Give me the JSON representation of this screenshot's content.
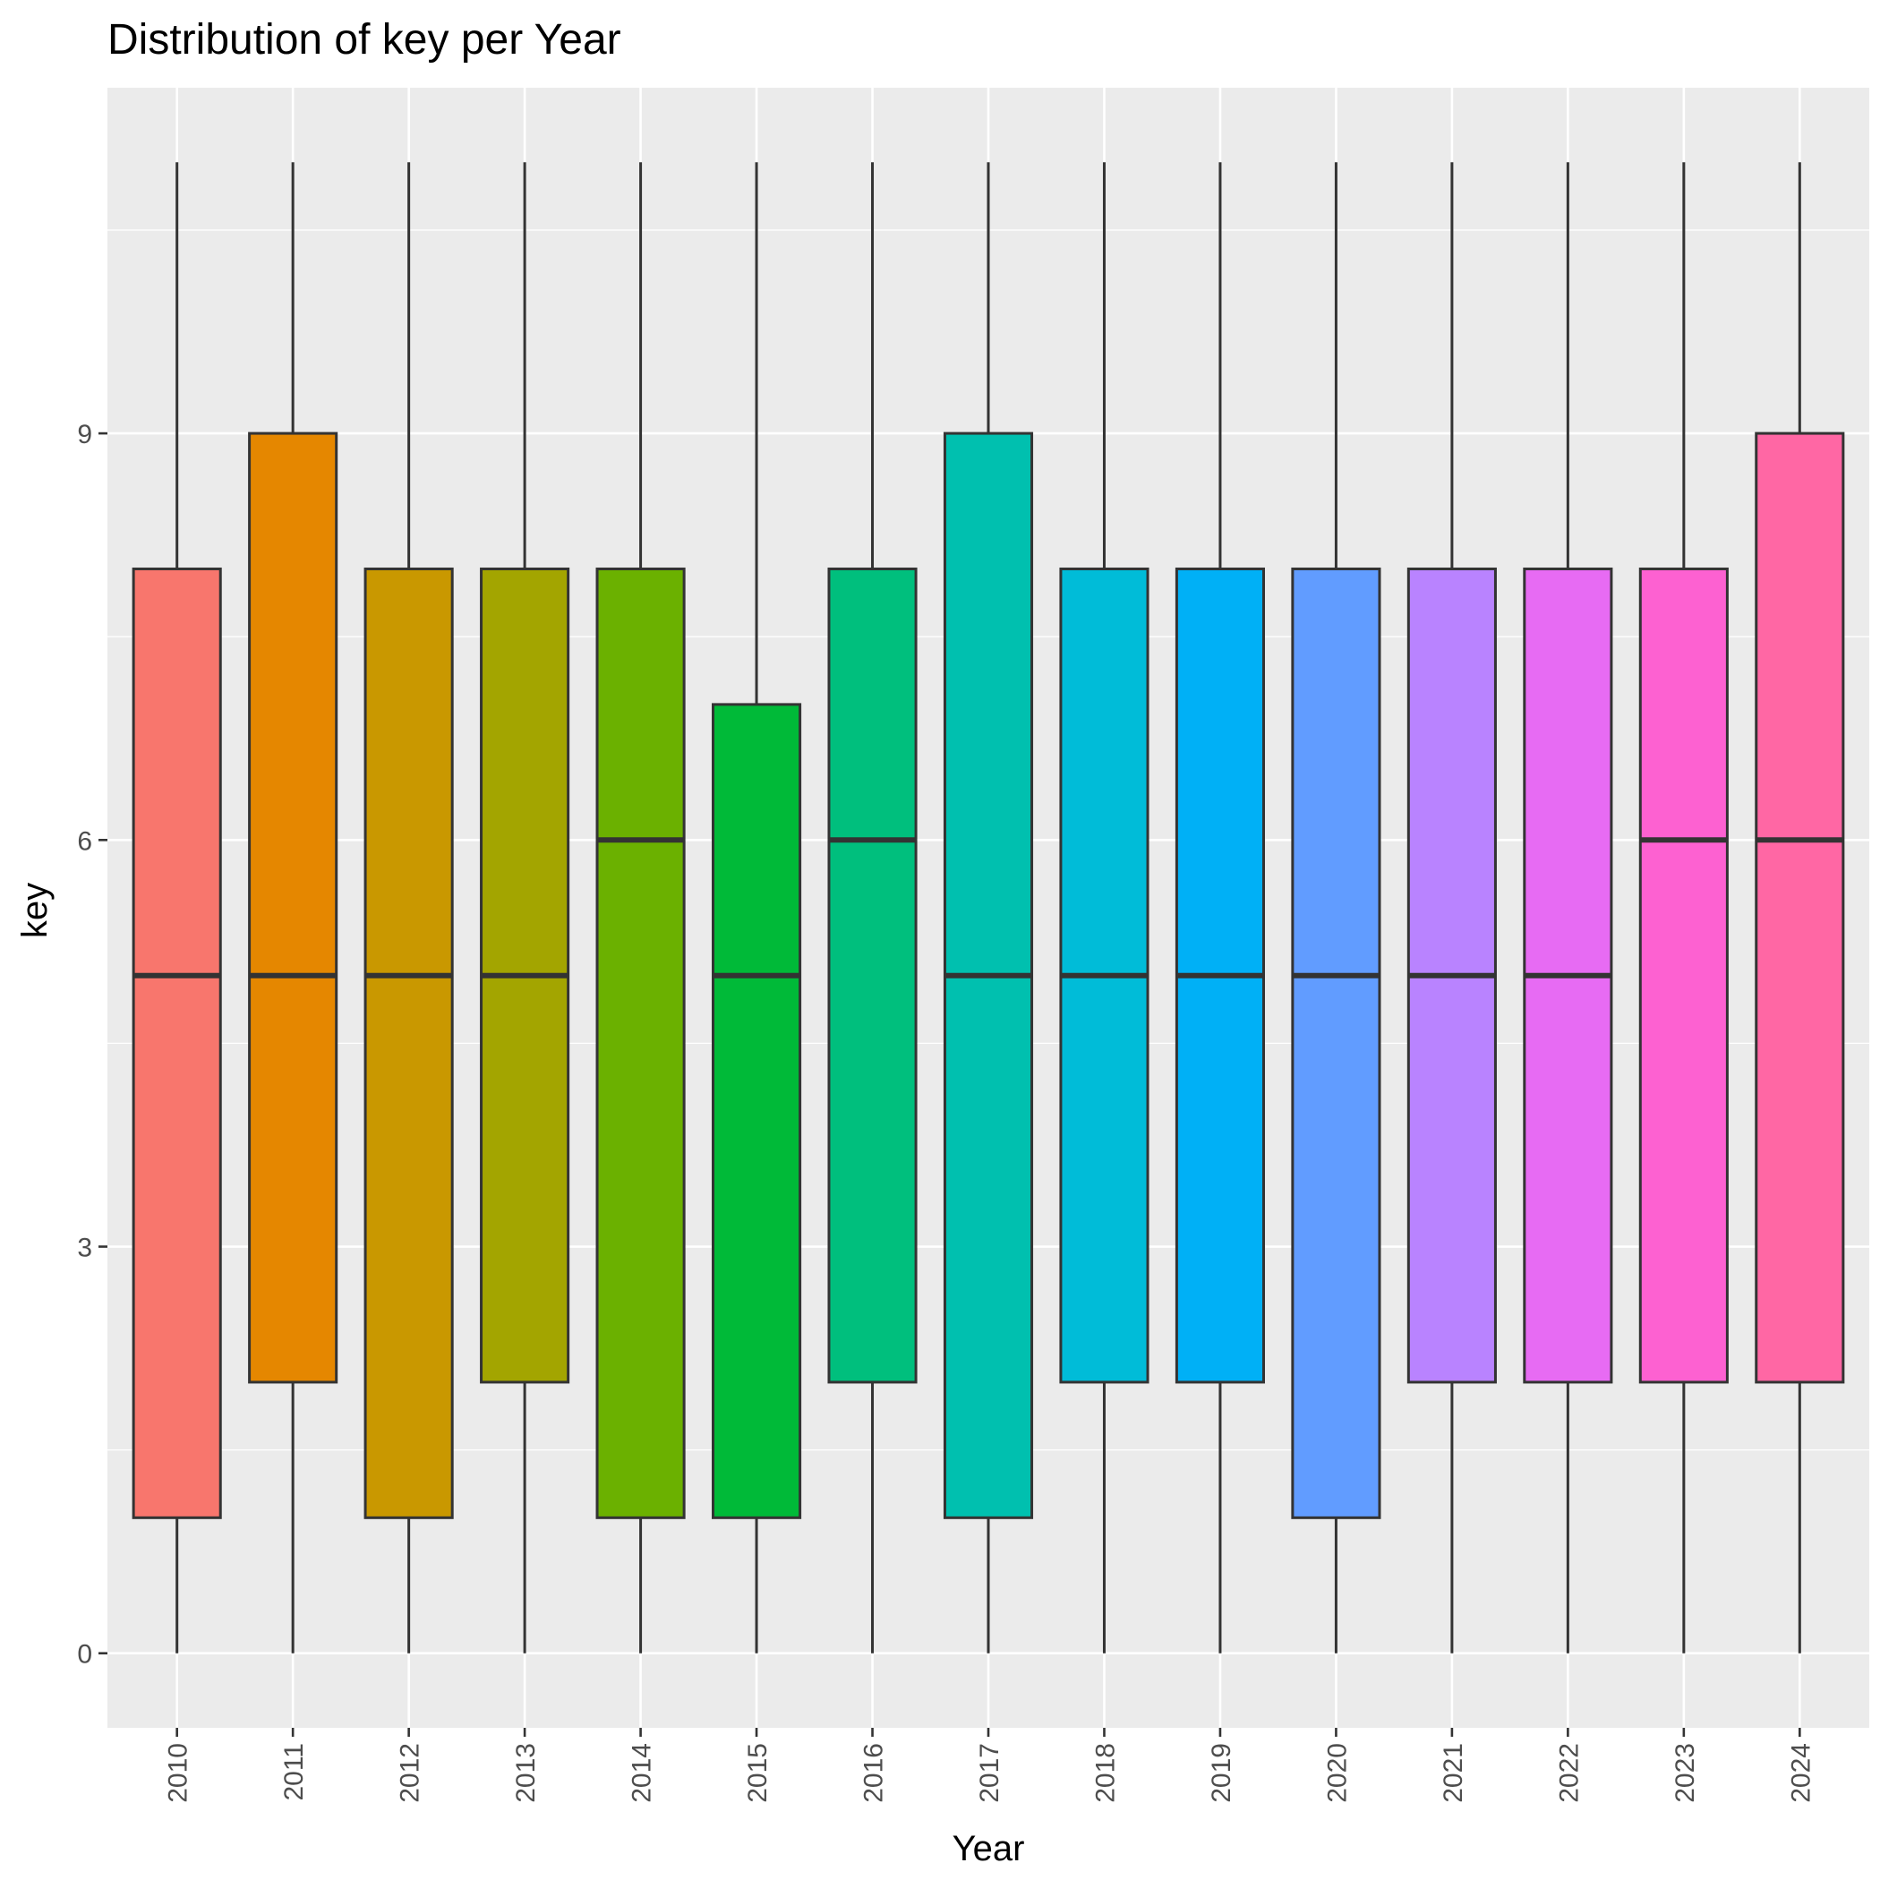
{
  "chart_data": {
    "type": "boxplot",
    "title": "Distribution of key per Year",
    "xlabel": "Year",
    "ylabel": "key",
    "ylim": [
      -0.55,
      11.55
    ],
    "y_ticks": [
      0,
      3,
      6,
      9
    ],
    "y_tick_labels": [
      "0",
      "3",
      "6",
      "9"
    ],
    "y_minor_ticks": [
      1.5,
      4.5,
      7.5,
      10.5
    ],
    "grid": true,
    "legend": "none",
    "panel_background": "#ebebeb",
    "grid_color": "#ffffff",
    "box_outline_color": "#333333",
    "categories": [
      "2010",
      "2011",
      "2012",
      "2013",
      "2014",
      "2015",
      "2016",
      "2017",
      "2018",
      "2019",
      "2020",
      "2021",
      "2022",
      "2023",
      "2024"
    ],
    "boxes": [
      {
        "min": 0,
        "q1": 1,
        "median": 5,
        "q3": 8,
        "max": 11,
        "color": "#F8766D"
      },
      {
        "min": 0,
        "q1": 2,
        "median": 5,
        "q3": 9,
        "max": 11,
        "color": "#E58700"
      },
      {
        "min": 0,
        "q1": 1,
        "median": 5,
        "q3": 8,
        "max": 11,
        "color": "#C99800"
      },
      {
        "min": 0,
        "q1": 2,
        "median": 5,
        "q3": 8,
        "max": 11,
        "color": "#A3A500"
      },
      {
        "min": 0,
        "q1": 1,
        "median": 6,
        "q3": 8,
        "max": 11,
        "color": "#6BB100"
      },
      {
        "min": 0,
        "q1": 1,
        "median": 5,
        "q3": 7,
        "max": 11,
        "color": "#00BA38"
      },
      {
        "min": 0,
        "q1": 2,
        "median": 6,
        "q3": 8,
        "max": 11,
        "color": "#00BF7D"
      },
      {
        "min": 0,
        "q1": 1,
        "median": 5,
        "q3": 9,
        "max": 11,
        "color": "#00C0AF"
      },
      {
        "min": 0,
        "q1": 2,
        "median": 5,
        "q3": 8,
        "max": 11,
        "color": "#00BCD8"
      },
      {
        "min": 0,
        "q1": 2,
        "median": 5,
        "q3": 8,
        "max": 11,
        "color": "#00B0F6"
      },
      {
        "min": 0,
        "q1": 1,
        "median": 5,
        "q3": 8,
        "max": 11,
        "color": "#619CFF"
      },
      {
        "min": 0,
        "q1": 2,
        "median": 5,
        "q3": 8,
        "max": 11,
        "color": "#B983FF"
      },
      {
        "min": 0,
        "q1": 2,
        "median": 5,
        "q3": 8,
        "max": 11,
        "color": "#E76BF3"
      },
      {
        "min": 0,
        "q1": 2,
        "median": 6,
        "q3": 8,
        "max": 11,
        "color": "#FD61D1"
      },
      {
        "min": 0,
        "q1": 2,
        "median": 6,
        "q3": 9,
        "max": 11,
        "color": "#FF67A4"
      }
    ]
  }
}
